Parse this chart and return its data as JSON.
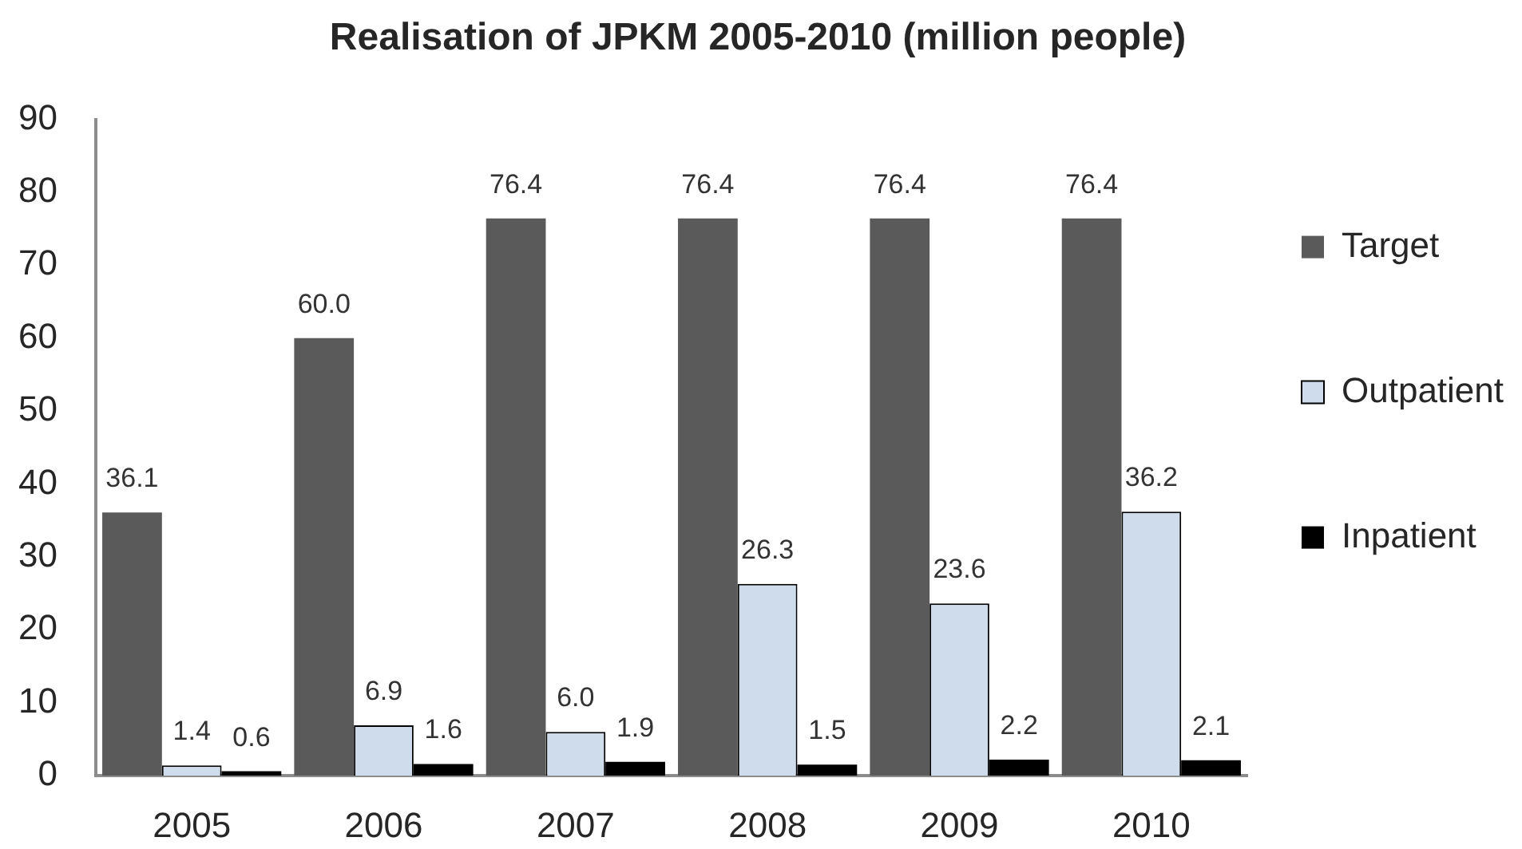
{
  "chart_data": {
    "type": "bar",
    "title": "Realisation of JPKM 2005-2010 (million people)",
    "categories": [
      "2005",
      "2006",
      "2007",
      "2008",
      "2009",
      "2010"
    ],
    "series": [
      {
        "name": "Target",
        "color": "#5a5a5a",
        "values": [
          36.1,
          60.0,
          76.4,
          76.4,
          76.4,
          76.4
        ],
        "value_labels": [
          "36.1",
          "60.0",
          "76.4",
          "76.4",
          "76.4",
          "76.4"
        ]
      },
      {
        "name": "Outpatient",
        "color": "#cfdcec",
        "values": [
          1.4,
          6.9,
          6.0,
          26.3,
          23.6,
          36.2
        ],
        "value_labels": [
          "1.4",
          "6.9",
          "6.0",
          "26.3",
          "23.6",
          "36.2"
        ]
      },
      {
        "name": "Inpatient",
        "color": "#000000",
        "values": [
          0.6,
          1.6,
          1.9,
          1.5,
          2.2,
          2.1
        ],
        "value_labels": [
          "0.6",
          "1.6",
          "1.9",
          "1.5",
          "2.2",
          "2.1"
        ]
      }
    ],
    "ylim": [
      0,
      90
    ],
    "yticks": [
      0,
      10,
      20,
      30,
      40,
      50,
      60,
      70,
      80,
      90
    ],
    "grid": false,
    "legend": "right"
  }
}
